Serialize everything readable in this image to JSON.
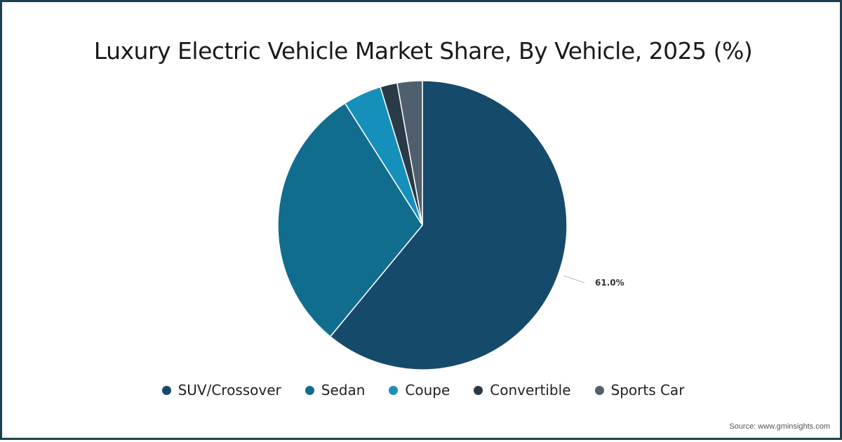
{
  "chart_data": {
    "type": "pie",
    "title": "Luxury Electric Vehicle Market Share, By Vehicle, 2025 (%)",
    "categories": [
      "SUV/Crossover",
      "Sedan",
      "Coupe",
      "Convertible",
      "Sports Car"
    ],
    "values": [
      61.0,
      30.0,
      4.3,
      1.9,
      2.8
    ],
    "colors": [
      "#164a6b",
      "#116d8e",
      "#1590ba",
      "#2a3a47",
      "#4f5f6d"
    ],
    "data_labels": [
      {
        "category": "SUV/Crossover",
        "text": "61.0%"
      }
    ],
    "legend_position": "bottom",
    "start_angle": 0,
    "direction": "clockwise"
  },
  "title": "Luxury Electric Vehicle Market Share, By Vehicle, 2025 (%)",
  "legend": [
    {
      "label": "SUV/Crossover",
      "color": "#164a6b"
    },
    {
      "label": "Sedan",
      "color": "#116d8e"
    },
    {
      "label": "Coupe",
      "color": "#1590ba"
    },
    {
      "label": "Convertible",
      "color": "#2a3a47"
    },
    {
      "label": "Sports Car",
      "color": "#4f5f6d"
    }
  ],
  "source": "Source: www.gminsights.com"
}
